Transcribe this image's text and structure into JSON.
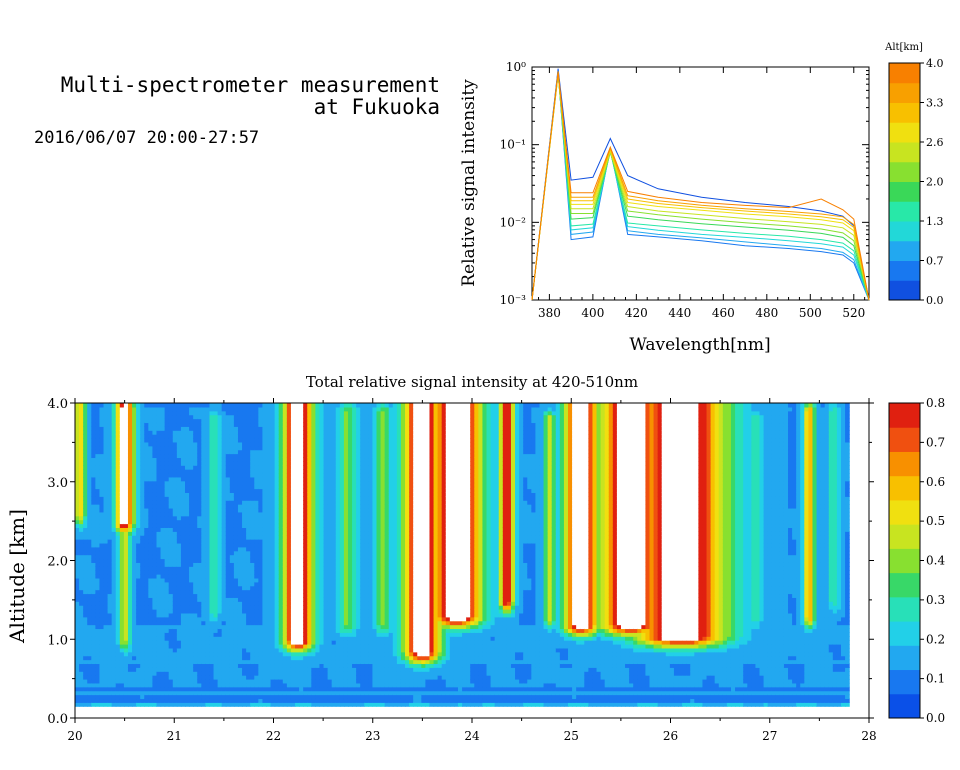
{
  "header": {
    "title_line1": "Multi-spectrometer measurement",
    "title_line2": "at Fukuoka",
    "datetime": "2016/06/07 20:00-27:57"
  },
  "chart_data": [
    {
      "type": "line",
      "xlabel": "Wavelength[nm]",
      "ylabel": "Relative signal intensity",
      "xlim": [
        372,
        527
      ],
      "ylim": [
        0.001,
        1
      ],
      "y_scale": "log",
      "x_ticks": [
        380,
        400,
        420,
        440,
        460,
        480,
        500,
        520
      ],
      "y_ticks": [
        {
          "value": 0.001,
          "label": "10⁻³"
        },
        {
          "value": 0.01,
          "label": "10⁻²"
        },
        {
          "value": 0.1,
          "label": "10⁻¹"
        },
        {
          "value": 1,
          "label": "10⁰"
        }
      ],
      "colorbar": {
        "title": "Alt[km]",
        "labels": [
          "0.0",
          "0.7",
          "1.3",
          "2.0",
          "2.6",
          "3.3",
          "4.0"
        ],
        "colors": [
          "#1050e0",
          "#1878f0",
          "#22a8f0",
          "#22d8d8",
          "#28e8a8",
          "#3ad858",
          "#88e030",
          "#c8e420",
          "#f0e010",
          "#f8c000",
          "#f8a000",
          "#f88000"
        ]
      },
      "series": [
        {
          "color": "#1050e0",
          "x": [
            372,
            384,
            390,
            400,
            408,
            416,
            430,
            450,
            470,
            490,
            505,
            515,
            520,
            527
          ],
          "values": [
            0.001,
            0.95,
            0.035,
            0.038,
            0.12,
            0.04,
            0.027,
            0.021,
            0.018,
            0.016,
            0.014,
            0.012,
            0.009,
            0.001
          ]
        },
        {
          "color": "#1878f0",
          "x": [
            372,
            384,
            390,
            400,
            408,
            416,
            430,
            450,
            470,
            490,
            505,
            515,
            520,
            527
          ],
          "values": [
            0.001,
            0.9,
            0.006,
            0.0065,
            0.09,
            0.007,
            0.0065,
            0.0058,
            0.005,
            0.0046,
            0.0042,
            0.0038,
            0.003,
            0.001
          ]
        },
        {
          "color": "#22a8f0",
          "x": [
            372,
            384,
            390,
            400,
            408,
            416,
            430,
            450,
            470,
            490,
            505,
            515,
            520,
            527
          ],
          "values": [
            0.001,
            0.88,
            0.007,
            0.0075,
            0.085,
            0.0078,
            0.007,
            0.0063,
            0.0056,
            0.005,
            0.0046,
            0.0041,
            0.0033,
            0.001
          ]
        },
        {
          "color": "#22d8d8",
          "x": [
            372,
            384,
            390,
            400,
            408,
            416,
            430,
            450,
            470,
            490,
            505,
            515,
            520,
            527
          ],
          "values": [
            0.001,
            0.86,
            0.008,
            0.0085,
            0.083,
            0.0088,
            0.0079,
            0.007,
            0.0064,
            0.0058,
            0.0053,
            0.0048,
            0.0038,
            0.001
          ]
        },
        {
          "color": "#28e8a8",
          "x": [
            372,
            384,
            390,
            400,
            408,
            416,
            430,
            450,
            470,
            490,
            505,
            515,
            520,
            527
          ],
          "values": [
            0.001,
            0.84,
            0.009,
            0.0095,
            0.082,
            0.0098,
            0.009,
            0.008,
            0.0072,
            0.0066,
            0.006,
            0.0054,
            0.0043,
            0.001
          ]
        },
        {
          "color": "#3ad858",
          "x": [
            372,
            384,
            390,
            400,
            408,
            416,
            430,
            450,
            470,
            490,
            505,
            515,
            520,
            527
          ],
          "values": [
            0.001,
            0.82,
            0.011,
            0.0115,
            0.08,
            0.012,
            0.0108,
            0.0096,
            0.0087,
            0.0079,
            0.0072,
            0.0064,
            0.005,
            0.001
          ]
        },
        {
          "color": "#88e030",
          "x": [
            372,
            384,
            390,
            400,
            408,
            416,
            430,
            450,
            470,
            490,
            505,
            515,
            520,
            527
          ],
          "values": [
            0.001,
            0.8,
            0.013,
            0.013,
            0.08,
            0.014,
            0.0125,
            0.011,
            0.0099,
            0.009,
            0.0082,
            0.0073,
            0.0058,
            0.001
          ]
        },
        {
          "color": "#c8e420",
          "x": [
            372,
            384,
            390,
            400,
            408,
            416,
            430,
            450,
            470,
            490,
            505,
            515,
            520,
            527
          ],
          "values": [
            0.001,
            0.8,
            0.015,
            0.015,
            0.082,
            0.016,
            0.014,
            0.0125,
            0.0112,
            0.0102,
            0.0094,
            0.0085,
            0.0068,
            0.001
          ]
        },
        {
          "color": "#f0e010",
          "x": [
            372,
            384,
            390,
            400,
            408,
            416,
            430,
            450,
            470,
            490,
            505,
            515,
            520,
            527
          ],
          "values": [
            0.001,
            0.82,
            0.017,
            0.017,
            0.085,
            0.018,
            0.016,
            0.0143,
            0.0128,
            0.0118,
            0.0108,
            0.0098,
            0.0078,
            0.001
          ]
        },
        {
          "color": "#f8c000",
          "x": [
            372,
            384,
            390,
            400,
            408,
            416,
            430,
            450,
            470,
            490,
            505,
            515,
            520,
            527
          ],
          "values": [
            0.001,
            0.84,
            0.019,
            0.019,
            0.088,
            0.02,
            0.0175,
            0.0155,
            0.014,
            0.0128,
            0.0118,
            0.0108,
            0.0086,
            0.001
          ]
        },
        {
          "color": "#f8a000",
          "x": [
            372,
            384,
            390,
            400,
            408,
            416,
            430,
            450,
            470,
            490,
            505,
            515,
            520,
            527
          ],
          "values": [
            0.001,
            0.86,
            0.021,
            0.021,
            0.09,
            0.022,
            0.019,
            0.0166,
            0.015,
            0.0138,
            0.0128,
            0.0118,
            0.0094,
            0.001
          ]
        },
        {
          "color": "#f88000",
          "x": [
            372,
            384,
            390,
            400,
            408,
            416,
            430,
            450,
            470,
            490,
            505,
            515,
            520,
            527
          ],
          "values": [
            0.001,
            0.88,
            0.024,
            0.024,
            0.093,
            0.025,
            0.021,
            0.018,
            0.0165,
            0.0155,
            0.02,
            0.0145,
            0.011,
            0.001
          ]
        }
      ]
    },
    {
      "type": "heatmap",
      "title": "Total relative signal intensity at 420-510nm",
      "ylabel": "Altitude [km]",
      "xlim": [
        20,
        28
      ],
      "ylim": [
        0,
        4
      ],
      "x_ticks": [
        20,
        21,
        22,
        23,
        24,
        25,
        26,
        27,
        28
      ],
      "y_ticks": [
        0,
        1,
        2,
        3,
        4
      ],
      "y_tick_labels": [
        "0.0",
        "1.0",
        "2.0",
        "3.0",
        "4.0"
      ],
      "data_x_range": [
        20,
        27.8
      ],
      "data_y_range": [
        0.15,
        4.0
      ],
      "value_range": [
        0,
        0.8
      ],
      "background_level": 0.12,
      "colorbar": {
        "labels": [
          "0.0",
          "0.1",
          "0.2",
          "0.3",
          "0.4",
          "0.5",
          "0.6",
          "0.7",
          "0.8"
        ],
        "colors": [
          "#0a50e8",
          "#1878f0",
          "#22a8f0",
          "#22d0e8",
          "#28e0b8",
          "#38d868",
          "#88e030",
          "#c8e420",
          "#f0e010",
          "#f8c000",
          "#f89000",
          "#f05010",
          "#e02010"
        ]
      },
      "features": [
        {
          "x": 20.05,
          "width": 0.06,
          "bottom": 2.6,
          "top": 4.0,
          "peak": 0.55
        },
        {
          "x": 20.5,
          "width": 0.09,
          "bottom": 2.5,
          "top": 3.95,
          "peak": 0.9
        },
        {
          "x": 20.5,
          "width": 0.06,
          "bottom": 1.0,
          "top": 2.5,
          "peak": 0.45
        },
        {
          "x": 21.4,
          "width": 0.06,
          "bottom": 1.4,
          "top": 3.8,
          "peak": 0.32
        },
        {
          "x": 22.25,
          "width": 0.15,
          "bottom": 1.0,
          "top": 4.0,
          "peak": 0.95
        },
        {
          "x": 22.75,
          "width": 0.1,
          "bottom": 1.2,
          "top": 3.9,
          "peak": 0.38
        },
        {
          "x": 23.1,
          "width": 0.08,
          "bottom": 1.2,
          "top": 3.9,
          "peak": 0.38
        },
        {
          "x": 23.5,
          "width": 0.18,
          "bottom": 0.85,
          "top": 4.0,
          "peak": 0.95
        },
        {
          "x": 23.85,
          "width": 0.25,
          "bottom": 1.3,
          "top": 4.0,
          "peak": 0.95
        },
        {
          "x": 24.35,
          "width": 0.07,
          "bottom": 1.5,
          "top": 4.0,
          "peak": 0.85
        },
        {
          "x": 24.78,
          "width": 0.06,
          "bottom": 1.3,
          "top": 3.8,
          "peak": 0.48
        },
        {
          "x": 25.1,
          "width": 0.17,
          "bottom": 1.2,
          "top": 4.0,
          "peak": 0.95
        },
        {
          "x": 25.6,
          "width": 0.3,
          "bottom": 1.2,
          "top": 4.0,
          "peak": 0.95
        },
        {
          "x": 26.1,
          "width": 0.45,
          "bottom": 1.05,
          "top": 4.0,
          "peak": 0.95
        },
        {
          "x": 26.85,
          "width": 0.07,
          "bottom": 1.3,
          "top": 3.8,
          "peak": 0.3
        },
        {
          "x": 27.4,
          "width": 0.06,
          "bottom": 1.3,
          "top": 3.9,
          "peak": 0.62
        },
        {
          "x": 27.65,
          "width": 0.06,
          "bottom": 1.5,
          "top": 3.9,
          "peak": 0.3
        }
      ]
    }
  ]
}
